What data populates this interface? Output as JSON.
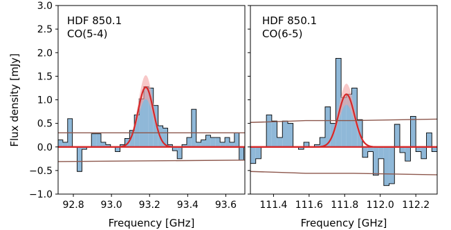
{
  "figure": {
    "ylabel": "Flux density [mJy]",
    "colors": {
      "hist_fill": "#8fb8d8",
      "hist_edge": "#000000",
      "fit_line": "#d62728",
      "fit_band": "#f4a3a3",
      "noise_line": "#8c564b",
      "zero_line": "#d62728"
    }
  },
  "chart_data": [
    {
      "type": "bar",
      "panel": "left",
      "label_line1": "HDF 850.1",
      "label_line2": "CO(5-4)",
      "xlabel": "Frequency [GHz]",
      "ylabel": "Flux density [mJy]",
      "xlim": [
        92.72,
        93.7
      ],
      "ylim": [
        -1.0,
        3.0
      ],
      "xticks": [
        92.8,
        93.0,
        93.2,
        93.4,
        93.6
      ],
      "xtick_labels": [
        "92.8",
        "93.0",
        "93.2",
        "93.4",
        "93.6"
      ],
      "yticks": [
        -1.0,
        -0.5,
        0.0,
        0.5,
        1.0,
        1.5,
        2.0,
        2.5,
        3.0
      ],
      "ytick_labels": [
        "−1.0",
        "−0.5",
        "0.0",
        "0.5",
        "1.0",
        "1.5",
        "2.0",
        "2.5",
        "3.0"
      ],
      "step_edges": [
        92.72,
        92.745,
        92.77,
        92.795,
        92.82,
        92.845,
        92.87,
        92.895,
        92.92,
        92.945,
        92.97,
        92.995,
        93.02,
        93.045,
        93.07,
        93.095,
        93.12,
        93.145,
        93.17,
        93.195,
        93.22,
        93.245,
        93.27,
        93.295,
        93.32,
        93.345,
        93.37,
        93.395,
        93.42,
        93.445,
        93.47,
        93.495,
        93.52,
        93.545,
        93.57,
        93.595,
        93.62,
        93.645,
        93.67,
        93.695
      ],
      "step_values": [
        0.15,
        0.1,
        0.6,
        0.0,
        -0.52,
        -0.05,
        0.0,
        0.28,
        0.28,
        0.1,
        0.05,
        0.0,
        -0.1,
        0.05,
        0.18,
        0.35,
        0.68,
        1.02,
        1.28,
        1.25,
        0.88,
        0.45,
        0.4,
        0.05,
        -0.08,
        -0.25,
        0.05,
        0.2,
        0.8,
        0.1,
        0.15,
        0.25,
        0.2,
        0.2,
        0.1,
        0.2,
        0.1,
        0.3,
        -0.28
      ],
      "gauss_center": 93.18,
      "gauss_sigma": 0.04,
      "gauss_amp": 1.27,
      "band_scale": 0.2,
      "noise_upper": [
        [
          92.72,
          0.3
        ],
        [
          93.7,
          0.3
        ]
      ],
      "noise_lower": [
        [
          92.72,
          -0.31
        ],
        [
          93.7,
          -0.28
        ]
      ]
    },
    {
      "type": "bar",
      "panel": "right",
      "label_line1": "HDF 850.1",
      "label_line2": "CO(6-5)",
      "xlabel": "Frequency [GHz]",
      "ylabel": "",
      "xlim": [
        111.27,
        112.32
      ],
      "ylim": [
        -1.0,
        3.0
      ],
      "xticks": [
        111.4,
        111.6,
        111.8,
        112.0,
        112.2
      ],
      "xtick_labels": [
        "111.4",
        "111.6",
        "111.8",
        "112.0",
        "112.2"
      ],
      "yticks": [
        -1.0,
        -0.5,
        0.0,
        0.5,
        1.0,
        1.5,
        2.0,
        2.5,
        3.0
      ],
      "ytick_labels": [
        "",
        "",
        "",
        "",
        "",
        "",
        "",
        "",
        ""
      ],
      "step_edges": [
        111.27,
        111.3,
        111.33,
        111.36,
        111.39,
        111.42,
        111.45,
        111.48,
        111.51,
        111.54,
        111.57,
        111.6,
        111.63,
        111.66,
        111.69,
        111.72,
        111.75,
        111.78,
        111.81,
        111.84,
        111.87,
        111.9,
        111.93,
        111.96,
        111.99,
        112.02,
        112.05,
        112.08,
        112.11,
        112.14,
        112.17,
        112.2,
        112.23,
        112.26,
        112.29,
        112.32
      ],
      "step_values": [
        -0.35,
        -0.25,
        0.0,
        0.68,
        0.55,
        0.2,
        0.55,
        0.5,
        0.0,
        -0.05,
        0.1,
        0.0,
        0.05,
        0.2,
        0.85,
        0.5,
        1.88,
        1.05,
        1.12,
        1.25,
        0.58,
        -0.22,
        -0.1,
        -0.6,
        -0.25,
        -0.82,
        -0.78,
        0.48,
        -0.12,
        -0.3,
        0.65,
        -0.1,
        -0.25,
        0.3,
        -0.1
      ],
      "gauss_center": 111.81,
      "gauss_sigma": 0.045,
      "gauss_amp": 1.12,
      "band_scale": 0.2,
      "noise_upper": [
        [
          111.27,
          0.52
        ],
        [
          111.52,
          0.55
        ],
        [
          111.58,
          0.56
        ],
        [
          111.85,
          0.56
        ],
        [
          112.32,
          0.59
        ]
      ],
      "noise_lower": [
        [
          111.27,
          -0.52
        ],
        [
          111.52,
          -0.55
        ],
        [
          111.58,
          -0.56
        ],
        [
          111.85,
          -0.56
        ],
        [
          112.32,
          -0.59
        ]
      ]
    }
  ]
}
